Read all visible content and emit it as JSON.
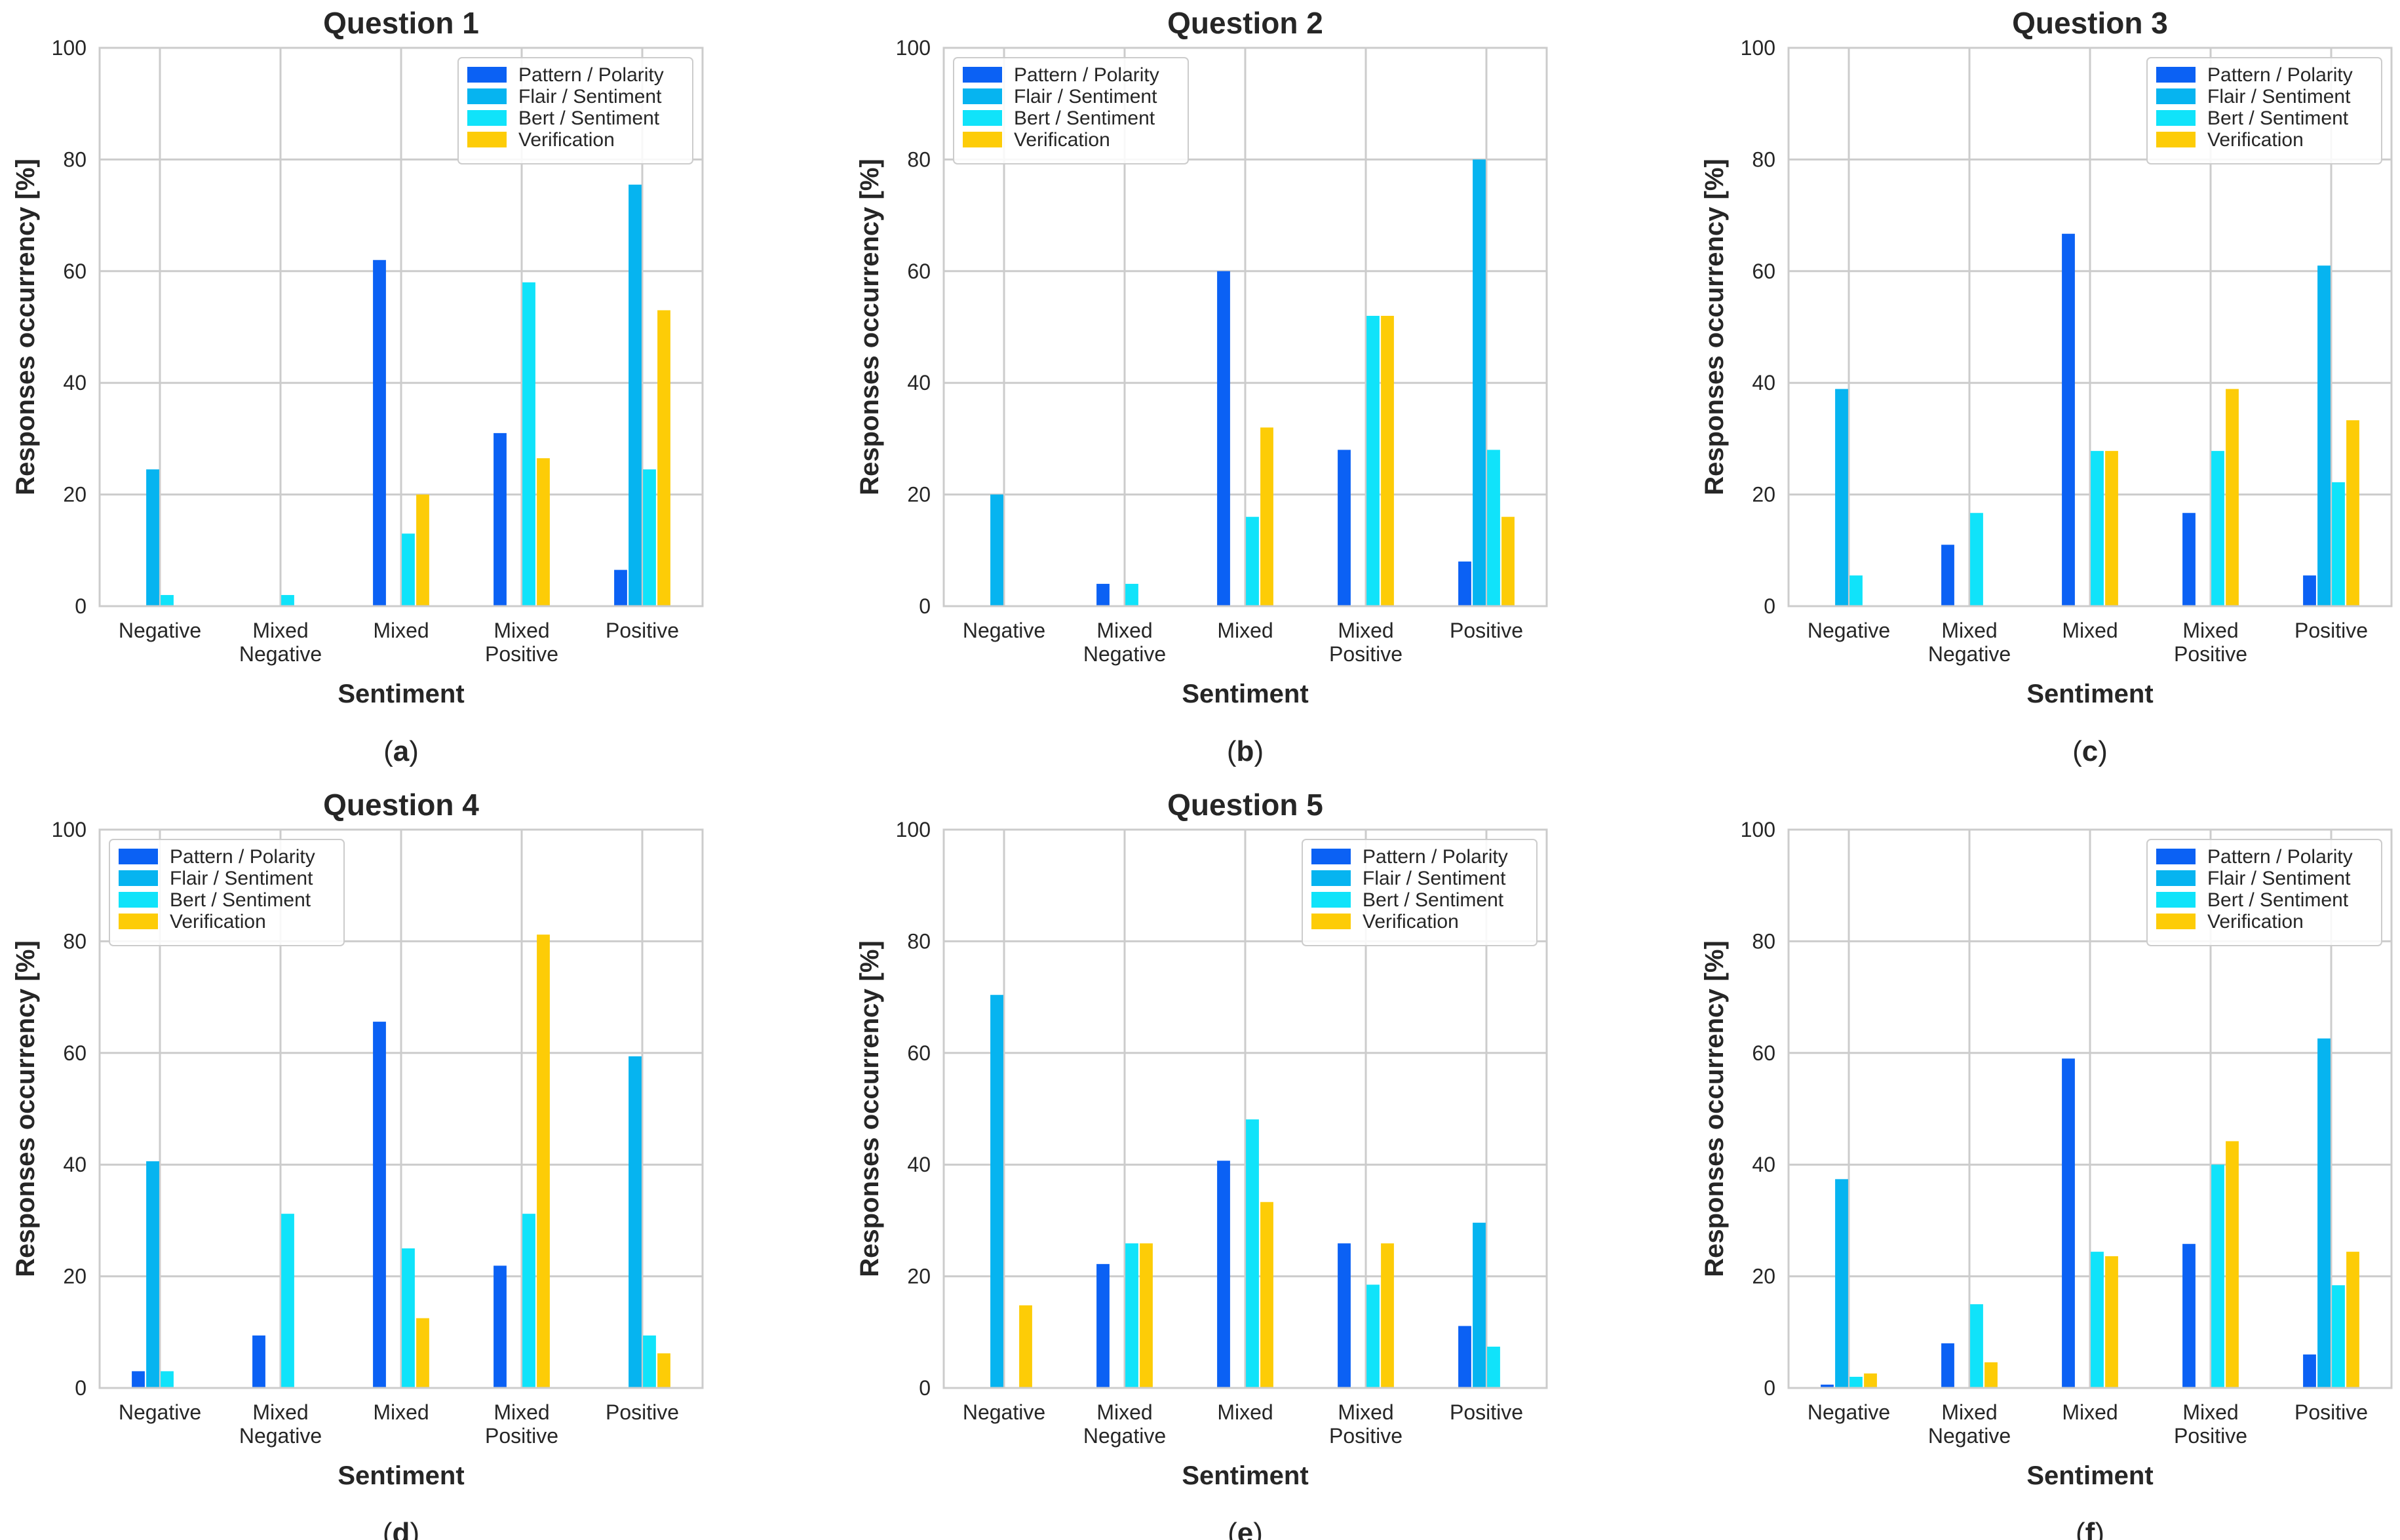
{
  "figure": {
    "series_names": [
      "Pattern / Polarity",
      "Flair / Sentiment",
      "Bert / Sentiment",
      "Verification"
    ],
    "series_colors": [
      "#0b61f4",
      "#06b4f0",
      "#10e3fa",
      "#fdcc07"
    ],
    "grid_color": "#cccccc",
    "axis_color": "#cccccc",
    "text_color": "#262626"
  },
  "chart_data": [
    {
      "type": "bar",
      "caption": "a",
      "title": "Question 1",
      "xlabel": "Sentiment",
      "ylabel": "Responses occurrency [%]",
      "ylim": [
        0,
        100
      ],
      "yticks": [
        0,
        20,
        40,
        60,
        80,
        100
      ],
      "legend_position": "top-right",
      "categories": [
        [
          "Negative"
        ],
        [
          "Mixed",
          "Negative"
        ],
        [
          "Mixed"
        ],
        [
          "Mixed",
          "Positive"
        ],
        [
          "Positive"
        ]
      ],
      "series": [
        {
          "name": "Pattern / Polarity",
          "values": [
            0,
            0,
            62,
            31,
            6.5
          ]
        },
        {
          "name": "Flair / Sentiment",
          "values": [
            24.5,
            0,
            0,
            0,
            75.5
          ]
        },
        {
          "name": "Bert / Sentiment",
          "values": [
            2,
            2,
            13,
            58,
            24.5
          ]
        },
        {
          "name": "Verification",
          "values": [
            0,
            0,
            20,
            26.5,
            53
          ]
        }
      ]
    },
    {
      "type": "bar",
      "caption": "b",
      "title": "Question 2",
      "xlabel": "Sentiment",
      "ylabel": "Responses occurrency [%]",
      "ylim": [
        0,
        100
      ],
      "yticks": [
        0,
        20,
        40,
        60,
        80,
        100
      ],
      "legend_position": "top-left",
      "categories": [
        [
          "Negative"
        ],
        [
          "Mixed",
          "Negative"
        ],
        [
          "Mixed"
        ],
        [
          "Mixed",
          "Positive"
        ],
        [
          "Positive"
        ]
      ],
      "series": [
        {
          "name": "Pattern / Polarity",
          "values": [
            0,
            4,
            60,
            28,
            8
          ]
        },
        {
          "name": "Flair / Sentiment",
          "values": [
            20,
            0,
            0,
            0,
            80
          ]
        },
        {
          "name": "Bert / Sentiment",
          "values": [
            0,
            4,
            16,
            52,
            28
          ]
        },
        {
          "name": "Verification",
          "values": [
            0,
            0,
            32,
            52,
            16
          ]
        }
      ]
    },
    {
      "type": "bar",
      "caption": "c",
      "title": "Question 3",
      "xlabel": "Sentiment",
      "ylabel": "Responses occurrency [%]",
      "ylim": [
        0,
        100
      ],
      "yticks": [
        0,
        20,
        40,
        60,
        80,
        100
      ],
      "legend_position": "top-right",
      "categories": [
        [
          "Negative"
        ],
        [
          "Mixed",
          "Negative"
        ],
        [
          "Mixed"
        ],
        [
          "Mixed",
          "Positive"
        ],
        [
          "Positive"
        ]
      ],
      "series": [
        {
          "name": "Pattern / Polarity",
          "values": [
            0,
            11,
            66.7,
            16.7,
            5.5
          ]
        },
        {
          "name": "Flair / Sentiment",
          "values": [
            38.9,
            0,
            0,
            0,
            61
          ]
        },
        {
          "name": "Bert / Sentiment",
          "values": [
            5.5,
            16.7,
            27.8,
            27.8,
            22.2
          ]
        },
        {
          "name": "Verification",
          "values": [
            0,
            0,
            27.8,
            38.9,
            33.3
          ]
        }
      ]
    },
    {
      "type": "bar",
      "caption": "d",
      "title": "Question 4",
      "xlabel": "Sentiment",
      "ylabel": "Responses occurrency [%]",
      "ylim": [
        0,
        100
      ],
      "yticks": [
        0,
        20,
        40,
        60,
        80,
        100
      ],
      "legend_position": "top-left",
      "categories": [
        [
          "Negative"
        ],
        [
          "Mixed",
          "Negative"
        ],
        [
          "Mixed"
        ],
        [
          "Mixed",
          "Positive"
        ],
        [
          "Positive"
        ]
      ],
      "series": [
        {
          "name": "Pattern / Polarity",
          "values": [
            3,
            9.4,
            65.6,
            21.9,
            0
          ]
        },
        {
          "name": "Flair / Sentiment",
          "values": [
            40.6,
            0,
            0,
            0,
            59.4
          ]
        },
        {
          "name": "Bert / Sentiment",
          "values": [
            3,
            31.2,
            25,
            31.2,
            9.4
          ]
        },
        {
          "name": "Verification",
          "values": [
            0,
            0,
            12.5,
            81.2,
            6.2
          ]
        }
      ]
    },
    {
      "type": "bar",
      "caption": "e",
      "title": "Question 5",
      "xlabel": "Sentiment",
      "ylabel": "Responses occurrency [%]",
      "ylim": [
        0,
        100
      ],
      "yticks": [
        0,
        20,
        40,
        60,
        80,
        100
      ],
      "legend_position": "top-right",
      "categories": [
        [
          "Negative"
        ],
        [
          "Mixed",
          "Negative"
        ],
        [
          "Mixed"
        ],
        [
          "Mixed",
          "Positive"
        ],
        [
          "Positive"
        ]
      ],
      "series": [
        {
          "name": "Pattern / Polarity",
          "values": [
            0,
            22.2,
            40.7,
            25.9,
            11.1
          ]
        },
        {
          "name": "Flair / Sentiment",
          "values": [
            70.4,
            0,
            0,
            0,
            29.6
          ]
        },
        {
          "name": "Bert / Sentiment",
          "values": [
            0,
            25.9,
            48.1,
            18.5,
            7.4
          ]
        },
        {
          "name": "Verification",
          "values": [
            14.8,
            25.9,
            33.3,
            25.9,
            0
          ]
        }
      ]
    },
    {
      "type": "bar",
      "caption": "f",
      "title": "",
      "xlabel": "Sentiment",
      "ylabel": "Responses occurrency [%]",
      "ylim": [
        0,
        100
      ],
      "yticks": [
        0,
        20,
        40,
        60,
        80,
        100
      ],
      "legend_position": "top-right",
      "categories": [
        [
          "Negative"
        ],
        [
          "Mixed",
          "Negative"
        ],
        [
          "Mixed"
        ],
        [
          "Mixed",
          "Positive"
        ],
        [
          "Positive"
        ]
      ],
      "series": [
        {
          "name": "Pattern / Polarity",
          "values": [
            0.6,
            8,
            59,
            25.8,
            6
          ]
        },
        {
          "name": "Flair / Sentiment",
          "values": [
            37.4,
            0,
            0,
            0,
            62.6
          ]
        },
        {
          "name": "Bert / Sentiment",
          "values": [
            2,
            15,
            24.4,
            40,
            18.4
          ]
        },
        {
          "name": "Verification",
          "values": [
            2.6,
            4.6,
            23.6,
            44.2,
            24.4
          ]
        }
      ]
    }
  ]
}
